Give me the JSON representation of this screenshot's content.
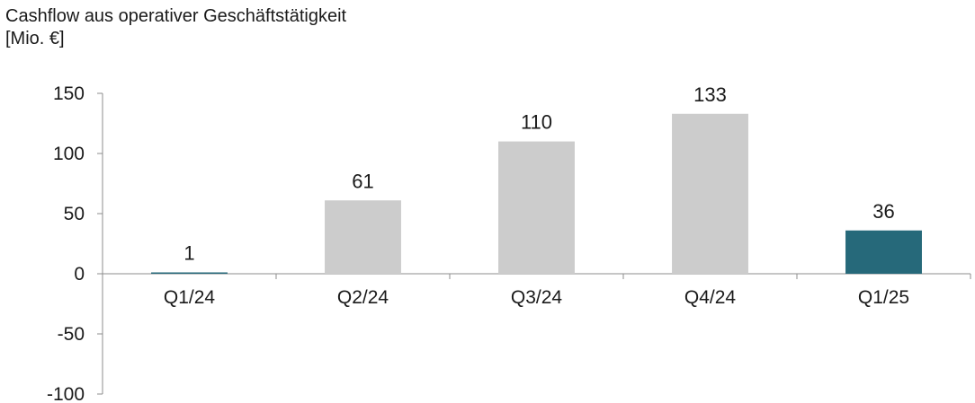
{
  "title_line1": "Cashflow aus operativer Geschäftstätigkeit",
  "title_line2": "[Mio. €]",
  "chart_data": {
    "type": "bar",
    "title": "Cashflow aus operativer Geschäftstätigkeit",
    "ylabel": "[Mio. €]",
    "xlabel": "",
    "categories": [
      "Q1/24",
      "Q2/24",
      "Q3/24",
      "Q4/24",
      "Q1/25"
    ],
    "values": [
      1,
      61,
      110,
      133,
      36
    ],
    "data_labels": [
      "1",
      "61",
      "110",
      "133",
      "36"
    ],
    "ylim": [
      -100,
      150
    ],
    "yticks": [
      150,
      100,
      50,
      0,
      -50,
      -100
    ],
    "grid": false,
    "legend": "none",
    "colors": {
      "highlight": "#26697a",
      "default": "#cccccc",
      "axis": "#8c8c8c"
    },
    "bar_color_keys": [
      "highlight",
      "default",
      "default",
      "default",
      "highlight"
    ]
  }
}
